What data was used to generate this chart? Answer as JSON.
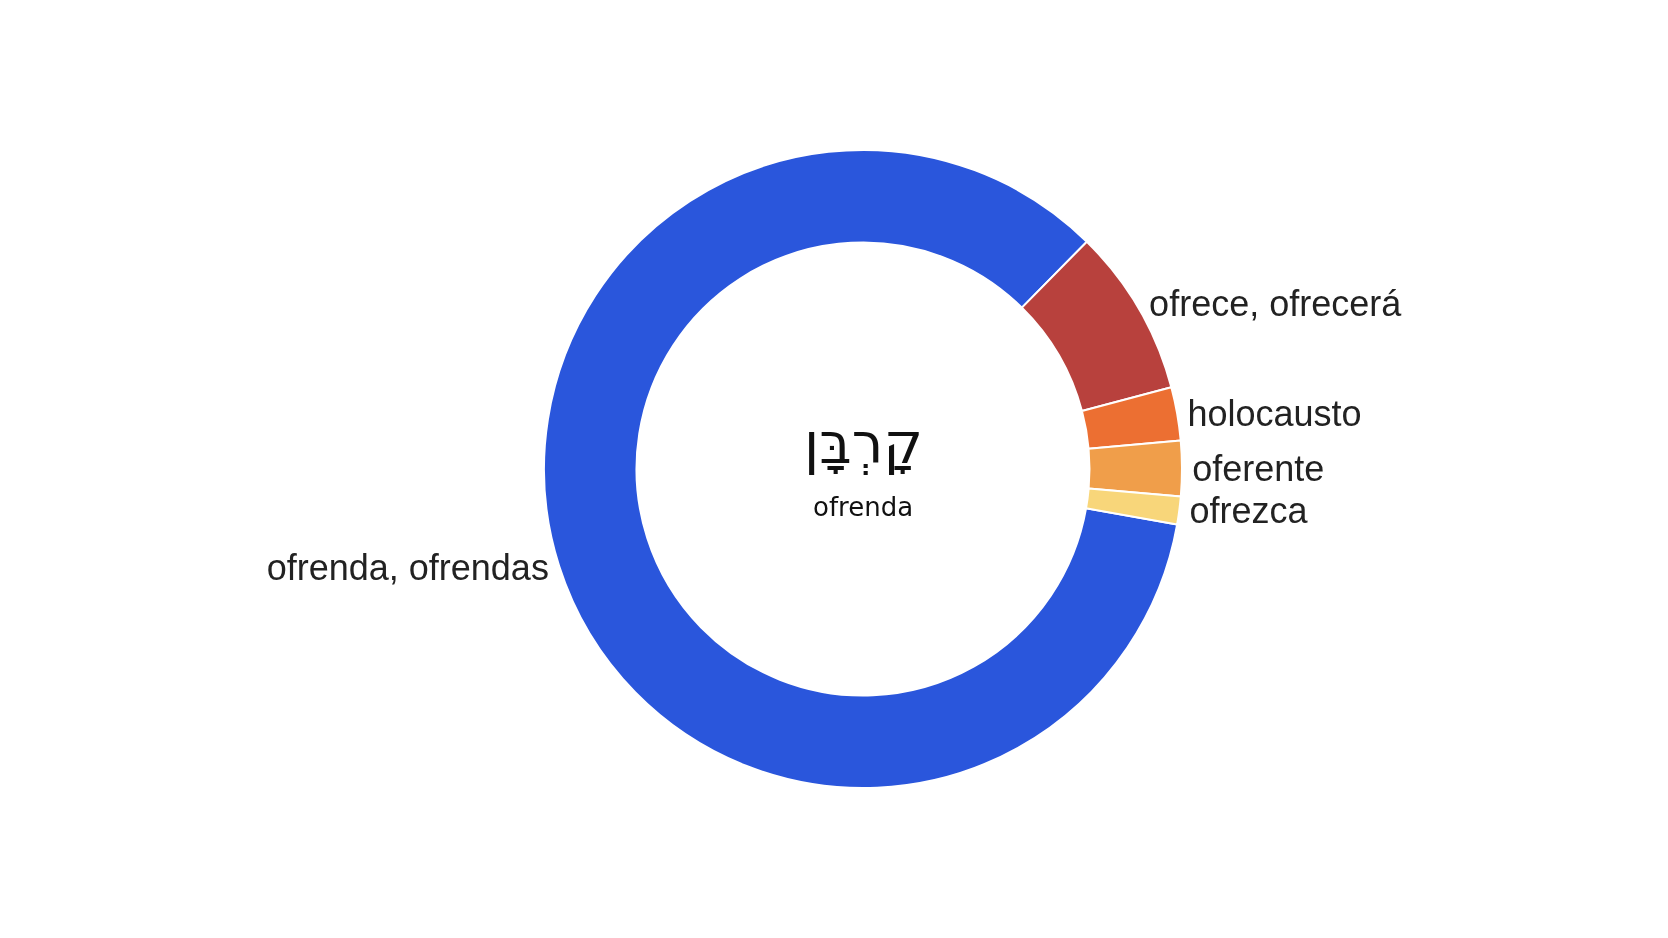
{
  "chart_data": {
    "type": "donut",
    "categories": [
      "ofrenda, ofrendas",
      "ofrece, ofrecerá",
      "holocausto",
      "oferente",
      "ofrezca"
    ],
    "values": [
      84.6,
      8.5,
      2.7,
      2.8,
      1.4
    ],
    "colors": [
      "#2a56dc",
      "#b8413d",
      "#ec6f32",
      "#f09e4a",
      "#f8d67a"
    ],
    "annotations": [
      "קָרְבָּן",
      "ofrenda"
    ],
    "legend": false
  }
}
